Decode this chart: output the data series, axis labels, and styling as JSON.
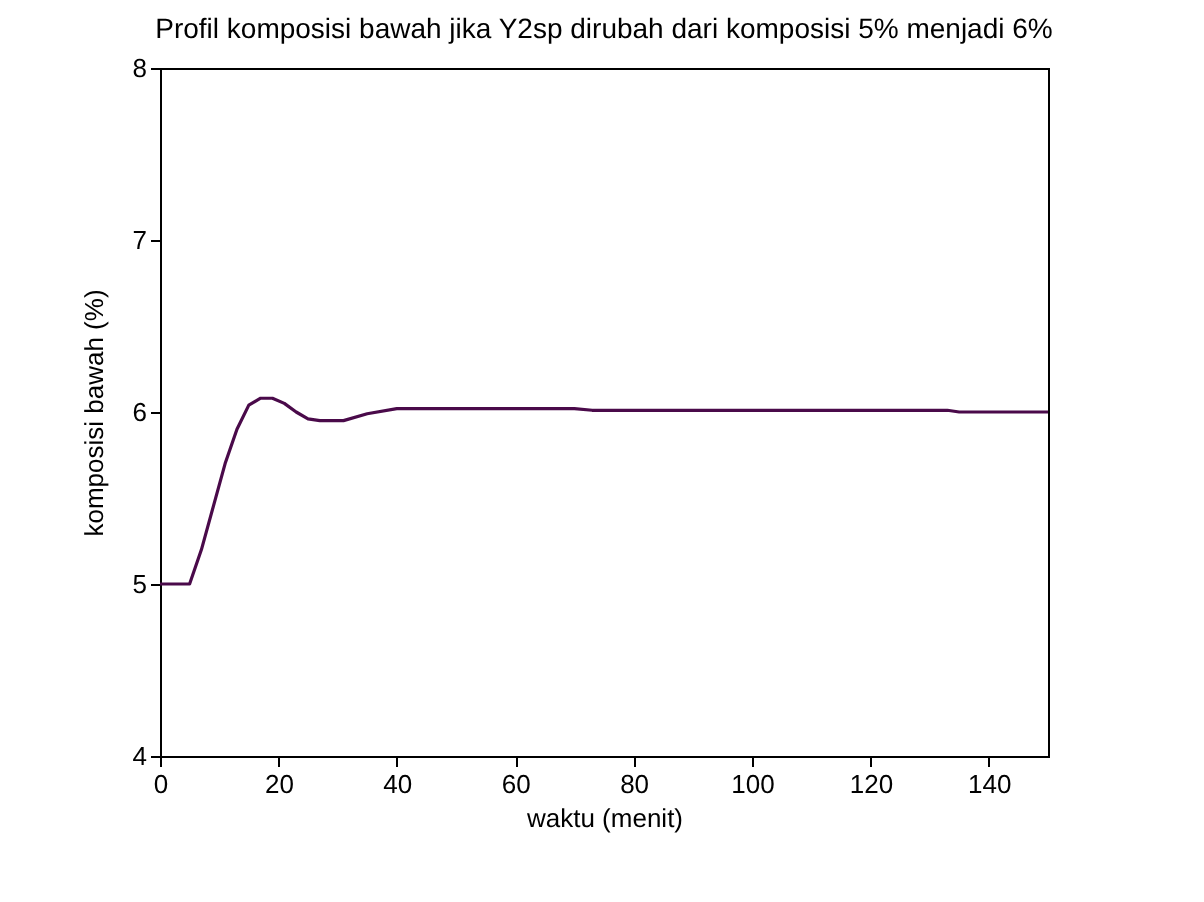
{
  "chart_data": {
    "type": "line",
    "title": "Profil komposisi bawah jika Y2sp dirubah dari komposisi 5% menjadi 6%",
    "xlabel": "waktu (menit)",
    "ylabel": "komposisi bawah (%)",
    "x": [
      0,
      5,
      7,
      9,
      11,
      13,
      15,
      17,
      19,
      21,
      23,
      25,
      27,
      31,
      35,
      40,
      50,
      60,
      70,
      73,
      100,
      133,
      135,
      150
    ],
    "series": [
      {
        "color": "#4a0a4a",
        "values": [
          5,
          5,
          5.2,
          5.45,
          5.7,
          5.9,
          6.04,
          6.08,
          6.08,
          6.05,
          6.0,
          5.96,
          5.95,
          5.95,
          5.99,
          6.02,
          6.02,
          6.02,
          6.02,
          6.01,
          6.01,
          6.01,
          6.0,
          6.0
        ]
      }
    ],
    "xlim": [
      0,
      150
    ],
    "xticks": [
      0,
      20,
      40,
      60,
      80,
      100,
      120,
      140
    ],
    "ylim": [
      4,
      8
    ],
    "yticks": [
      4,
      5,
      6,
      7,
      8
    ],
    "grid": false,
    "marker": "none",
    "line_style": "solid"
  }
}
